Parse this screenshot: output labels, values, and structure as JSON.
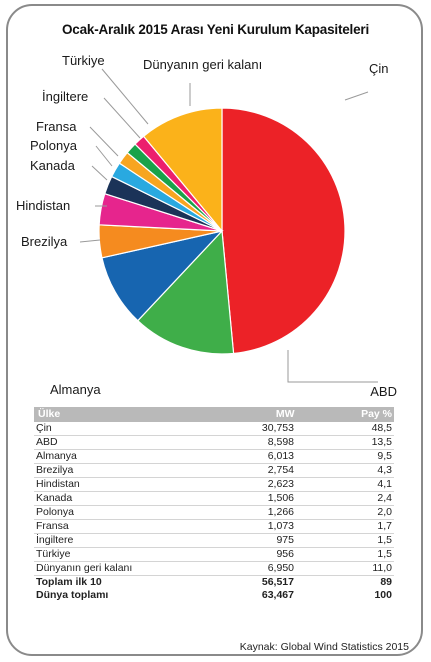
{
  "chart_data": {
    "type": "pie",
    "title": "Ocak-Aralık 2015 Arası Yeni Kurulum Kapasiteleri",
    "slices": [
      {
        "label": "Çin",
        "value": 48.5,
        "color": "#ec2227"
      },
      {
        "label": "ABD",
        "value": 13.5,
        "color": "#3fae49"
      },
      {
        "label": "Almanya",
        "value": 9.5,
        "color": "#1765b0"
      },
      {
        "label": "Brezilya",
        "value": 4.3,
        "color": "#f58b1f"
      },
      {
        "label": "Hindistan",
        "value": 4.1,
        "color": "#e6258d"
      },
      {
        "label": "Kanada",
        "value": 2.4,
        "color": "#1b3358"
      },
      {
        "label": "Polonya",
        "value": 2.0,
        "color": "#29a9e0"
      },
      {
        "label": "Fransa",
        "value": 1.7,
        "color": "#f7a520"
      },
      {
        "label": "İngiltere",
        "value": 1.5,
        "color": "#19a24a"
      },
      {
        "label": "Türkiye",
        "value": 1.5,
        "color": "#ec1f6d"
      },
      {
        "label": "Dünyanın geri kalanı",
        "value": 11.0,
        "color": "#fbb21a"
      }
    ]
  },
  "table": {
    "headers": {
      "country": "Ülke",
      "mw": "MW",
      "share": "Pay %"
    },
    "rows": [
      {
        "country": "Çin",
        "mw": "30,753",
        "share": "48,5"
      },
      {
        "country": "ABD",
        "mw": "8,598",
        "share": "13,5"
      },
      {
        "country": "Almanya",
        "mw": "6,013",
        "share": "9,5"
      },
      {
        "country": "Brezilya",
        "mw": "2,754",
        "share": "4,3"
      },
      {
        "country": "Hindistan",
        "mw": "2,623",
        "share": "4,1"
      },
      {
        "country": "Kanada",
        "mw": "1,506",
        "share": "2,4"
      },
      {
        "country": "Polonya",
        "mw": "1,266",
        "share": "2,0"
      },
      {
        "country": "Fransa",
        "mw": "1,073",
        "share": "1,7"
      },
      {
        "country": "İngiltere",
        "mw": "975",
        "share": "1,5"
      },
      {
        "country": "Türkiye",
        "mw": "956",
        "share": "1,5"
      },
      {
        "country": "Dünyanın geri kalanı",
        "mw": "6,950",
        "share": "11,0"
      }
    ],
    "totals": [
      {
        "country": "Toplam ilk 10",
        "mw": "56,517",
        "share": "89"
      },
      {
        "country": "Dünya toplamı",
        "mw": "63,467",
        "share": "100"
      }
    ]
  },
  "source": "Kaynak: Global Wind Statistics 2015"
}
